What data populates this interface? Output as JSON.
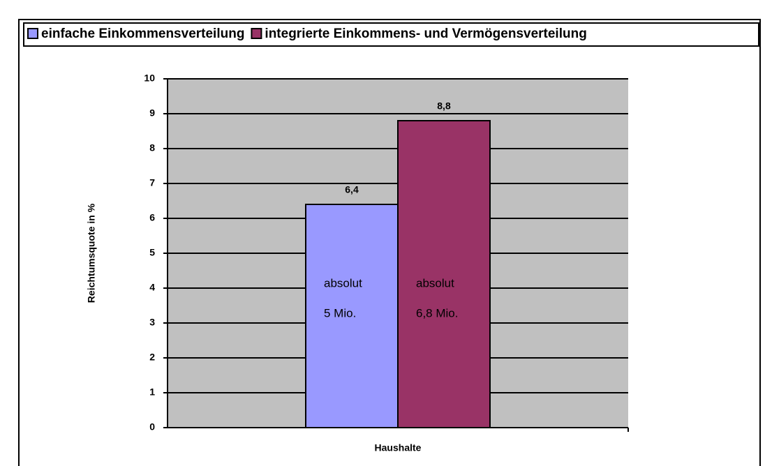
{
  "chart_data": {
    "type": "bar",
    "categories": [
      "Haushalte"
    ],
    "series": [
      {
        "name": "einfache Einkommensverteilung",
        "color": "#9999ff",
        "values": [
          6.4
        ],
        "value_labels": [
          "6,4"
        ],
        "inner_labels": [
          "absolut",
          "5 Mio."
        ]
      },
      {
        "name": "integrierte Einkommens- und Vermögensverteilung",
        "color": "#993366",
        "values": [
          8.8
        ],
        "value_labels": [
          "8,8"
        ],
        "inner_labels": [
          "absolut",
          "6,8 Mio."
        ]
      }
    ],
    "ylabel": "Reichtumsquote in %",
    "ylim": [
      0,
      10
    ],
    "yticks": [
      0,
      1,
      2,
      3,
      4,
      5,
      6,
      7,
      8,
      9,
      10
    ],
    "grid": true,
    "legend": "top",
    "plot_background": "#c0c0c0"
  }
}
